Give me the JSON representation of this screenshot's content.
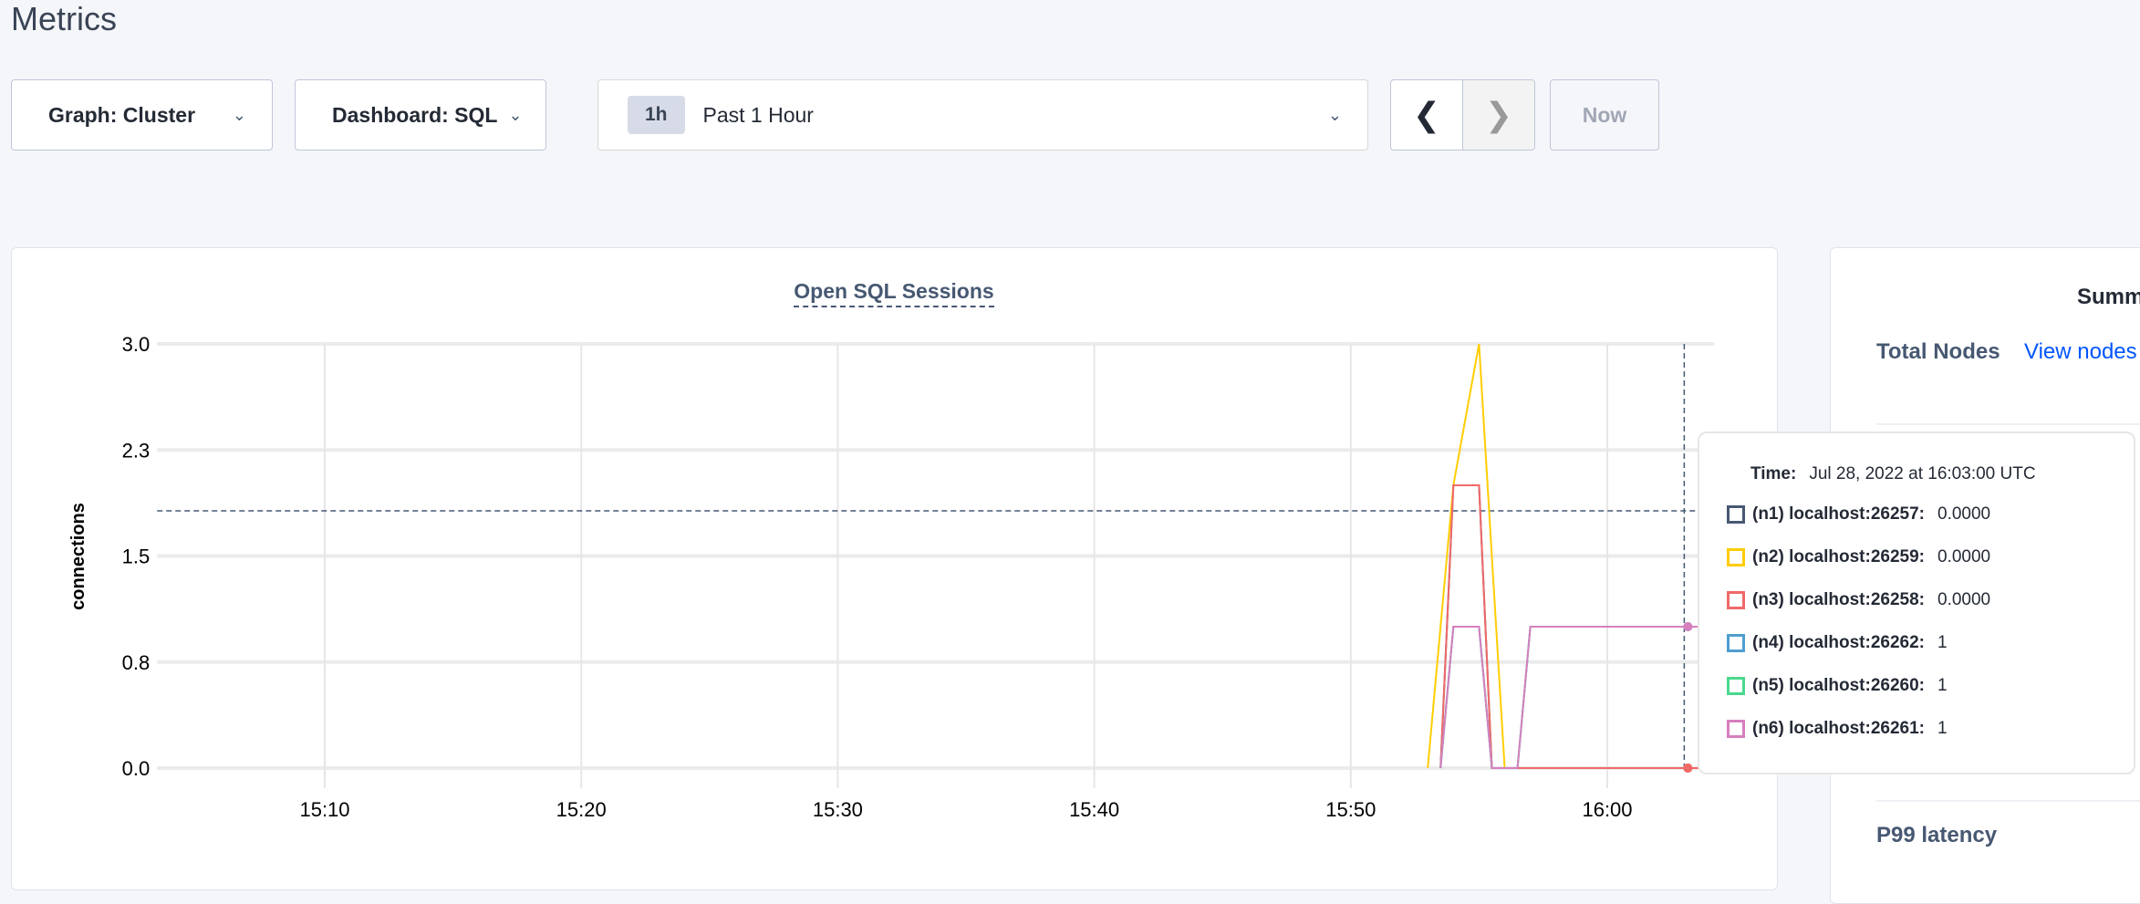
{
  "page": {
    "title": "Metrics"
  },
  "toolbar": {
    "graph_label": "Graph: Cluster",
    "dashboard_label": "Dashboard: SQL",
    "range_badge": "1h",
    "range_label": "Past 1 Hour",
    "prev_icon": "chevron-left-icon",
    "next_icon": "chevron-right-icon",
    "now_label": "Now"
  },
  "chart_data": {
    "type": "line",
    "title": "Open SQL Sessions",
    "ylabel": "connections",
    "xlabel": "",
    "xlim": [
      "15:03:45",
      "16:04:10"
    ],
    "ylim": [
      0,
      3
    ],
    "yticks": [
      {
        "value": 0,
        "label": "0.0"
      },
      {
        "value": 0.75,
        "label": "0.8"
      },
      {
        "value": 1.5,
        "label": "1.5"
      },
      {
        "value": 2.25,
        "label": "2.3"
      },
      {
        "value": 3,
        "label": "3.0"
      }
    ],
    "xticks": [
      "15:10",
      "15:20",
      "15:30",
      "15:40",
      "15:50",
      "16:00"
    ],
    "grid": true,
    "hover_time": "16:03:00",
    "series": [
      {
        "name": "(n1) localhost:26257",
        "color": "#475872",
        "x": [
          "15:53:30",
          "15:54:00",
          "15:55:00",
          "15:55:30",
          "16:03:00"
        ],
        "y": [
          0,
          2,
          2,
          0,
          0
        ]
      },
      {
        "name": "(n2) localhost:26259",
        "color": "#ffcd02",
        "x": [
          "15:53:00",
          "15:54:00",
          "15:55:00",
          "15:56:00",
          "16:03:00"
        ],
        "y": [
          0,
          2,
          3,
          0,
          0
        ]
      },
      {
        "name": "(n3) localhost:26258",
        "color": "#f16969",
        "x": [
          "15:53:30",
          "15:54:00",
          "15:55:00",
          "15:55:30",
          "16:03:00"
        ],
        "y": [
          0,
          2,
          2,
          0,
          0
        ]
      },
      {
        "name": "(n4) localhost:26262",
        "color": "#4e9fd1",
        "x": [
          "15:53:30",
          "15:54:00",
          "15:55:00",
          "15:55:30",
          "15:56:30",
          "15:57:00",
          "16:03:00"
        ],
        "y": [
          0,
          1,
          1,
          0,
          0,
          1,
          1
        ]
      },
      {
        "name": "(n5) localhost:26260",
        "color": "#49d990",
        "x": [
          "15:53:30",
          "15:54:00",
          "15:55:00",
          "15:55:30",
          "15:56:30",
          "15:57:00",
          "16:03:00"
        ],
        "y": [
          0,
          1,
          1,
          0,
          0,
          1,
          1
        ]
      },
      {
        "name": "(n6) localhost:26261",
        "color": "#d77fbf",
        "x": [
          "15:53:30",
          "15:54:00",
          "15:55:00",
          "15:55:30",
          "15:56:30",
          "15:57:00",
          "16:03:00"
        ],
        "y": [
          0,
          1,
          1,
          0,
          0,
          1,
          1
        ]
      }
    ]
  },
  "tooltip": {
    "time_label": "Time:",
    "time_value": "Jul 28, 2022 at 16:03:00 UTC",
    "rows": [
      {
        "name": "(n1) localhost:26257:",
        "value": "0.0000",
        "color": "#475872"
      },
      {
        "name": "(n2) localhost:26259:",
        "value": "0.0000",
        "color": "#ffcd02"
      },
      {
        "name": "(n3) localhost:26258:",
        "value": "0.0000",
        "color": "#f16969"
      },
      {
        "name": "(n4) localhost:26262:",
        "value": "1",
        "color": "#4e9fd1"
      },
      {
        "name": "(n5) localhost:26260:",
        "value": "1",
        "color": "#49d990"
      },
      {
        "name": "(n6) localhost:26261:",
        "value": "1",
        "color": "#d77fbf"
      }
    ]
  },
  "summary": {
    "title": "Summ",
    "total_nodes_label": "Total Nodes",
    "view_nodes_link": "View nodes",
    "p99_label": "P99 latency"
  }
}
